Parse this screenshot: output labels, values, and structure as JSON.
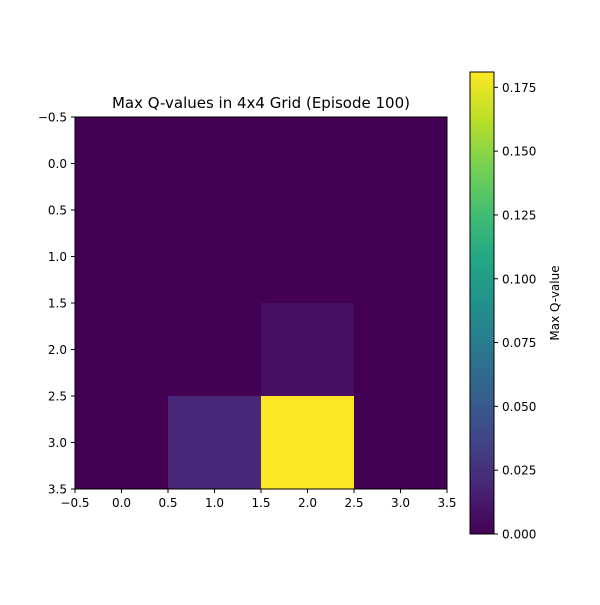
{
  "chart_data": {
    "type": "heatmap",
    "title": "Max Q-values in 4x4 Grid (Episode 100)",
    "rows": 4,
    "cols": 4,
    "values": [
      [
        0.0,
        0.0,
        0.0,
        0.0
      ],
      [
        0.0,
        0.0,
        0.0,
        0.0
      ],
      [
        0.0,
        0.0,
        0.007,
        0.0
      ],
      [
        0.0,
        0.02,
        0.181,
        0.0
      ]
    ],
    "x_ticks": [
      "−0.5",
      "0.0",
      "0.5",
      "1.0",
      "1.5",
      "2.0",
      "2.5",
      "3.0",
      "3.5"
    ],
    "y_ticks": [
      "−0.5",
      "0.0",
      "0.5",
      "1.0",
      "1.5",
      "2.0",
      "2.5",
      "3.0",
      "3.5"
    ],
    "xlim": [
      -0.5,
      3.5
    ],
    "ylim": [
      3.5,
      -0.5
    ],
    "colorbar": {
      "label": "Max Q-value",
      "colormap": "viridis",
      "range": [
        0.0,
        0.181
      ],
      "ticks": [
        "0.000",
        "0.025",
        "0.050",
        "0.075",
        "0.100",
        "0.125",
        "0.150",
        "0.175"
      ]
    }
  }
}
